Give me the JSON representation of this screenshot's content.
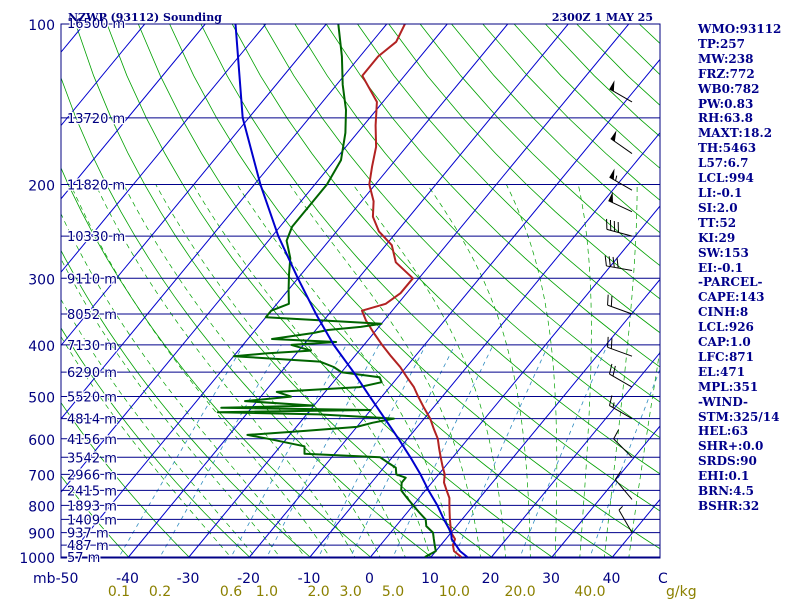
{
  "chart_data": {
    "type": "line",
    "title": "NZWP (93112) Sounding",
    "time": "2300Z  1 MAY 25",
    "ylabel": "mb",
    "pressure_levels": [
      100,
      200,
      300,
      400,
      500,
      600,
      700,
      800,
      900,
      1000
    ],
    "pressure_labels": [
      "100",
      "200",
      "300",
      "400",
      "500",
      "600",
      "700",
      "800",
      "900",
      "1000"
    ],
    "ylim": [
      1000,
      100
    ],
    "temperature_axis": {
      "ticks": [
        -50,
        -40,
        -30,
        -20,
        -10,
        0,
        10,
        20,
        30,
        40
      ],
      "labels": [
        "-50",
        "-40",
        "-30",
        "-20",
        "-10",
        "0",
        "10",
        "20",
        "30",
        "40"
      ],
      "unit": "C"
    },
    "mixing_ratio_axis": {
      "ticks": [
        0.1,
        0.2,
        0.6,
        1.0,
        2.0,
        3.0,
        5.0,
        10.0,
        20.0,
        40.0
      ],
      "labels": [
        "0.1",
        "0.2",
        "0.6",
        "1.0",
        "2.0",
        "3.0",
        "5.0",
        "10.0",
        "20.0",
        "40.0"
      ],
      "unit": "g/kg"
    },
    "height_labels": [
      {
        "p": 100,
        "text": "16500 m"
      },
      {
        "p": 150,
        "text": "13720 m"
      },
      {
        "p": 200,
        "text": "11820 m"
      },
      {
        "p": 250,
        "text": "10330 m"
      },
      {
        "p": 300,
        "text": "9110 m"
      },
      {
        "p": 350,
        "text": "8052 m"
      },
      {
        "p": 400,
        "text": "7130 m"
      },
      {
        "p": 450,
        "text": "6290 m"
      },
      {
        "p": 500,
        "text": "5520 m"
      },
      {
        "p": 550,
        "text": "4814 m"
      },
      {
        "p": 600,
        "text": "4156 m"
      },
      {
        "p": 650,
        "text": "3542 m"
      },
      {
        "p": 700,
        "text": "2966 m"
      },
      {
        "p": 750,
        "text": "2415 m"
      },
      {
        "p": 800,
        "text": "1893 m"
      },
      {
        "p": 850,
        "text": "1409 m"
      },
      {
        "p": 900,
        "text": "937 m"
      },
      {
        "p": 950,
        "text": "487 m"
      },
      {
        "p": 1000,
        "text": "57 m"
      }
    ],
    "series": [
      {
        "key": "temperature",
        "color": "#B22222",
        "points": [
          [
            1000,
            15
          ],
          [
            975,
            13
          ],
          [
            950,
            12
          ],
          [
            925,
            11.5
          ],
          [
            900,
            10
          ],
          [
            875,
            9
          ],
          [
            850,
            8
          ],
          [
            825,
            7
          ],
          [
            800,
            6
          ],
          [
            775,
            5
          ],
          [
            750,
            3.5
          ],
          [
            725,
            2
          ],
          [
            700,
            1
          ],
          [
            675,
            -0.5
          ],
          [
            650,
            -2
          ],
          [
            625,
            -3.5
          ],
          [
            600,
            -5
          ],
          [
            575,
            -7
          ],
          [
            550,
            -9
          ],
          [
            525,
            -11.5
          ],
          [
            500,
            -14
          ],
          [
            480,
            -16
          ],
          [
            460,
            -18.5
          ],
          [
            440,
            -21
          ],
          [
            420,
            -24
          ],
          [
            400,
            -27
          ],
          [
            380,
            -30
          ],
          [
            360,
            -33
          ],
          [
            345,
            -35
          ],
          [
            335,
            -32
          ],
          [
            320,
            -31
          ],
          [
            300,
            -31
          ],
          [
            280,
            -36
          ],
          [
            260,
            -39
          ],
          [
            245,
            -43
          ],
          [
            230,
            -46
          ],
          [
            215,
            -48
          ],
          [
            200,
            -51
          ],
          [
            185,
            -53
          ],
          [
            170,
            -55
          ],
          [
            155,
            -58
          ],
          [
            140,
            -61
          ],
          [
            125,
            -67
          ],
          [
            115,
            -67
          ],
          [
            108,
            -66
          ],
          [
            100,
            -67
          ]
        ]
      },
      {
        "key": "dewpoint",
        "color": "#006400",
        "points": [
          [
            1000,
            9
          ],
          [
            975,
            10
          ],
          [
            950,
            9
          ],
          [
            925,
            8
          ],
          [
            900,
            7
          ],
          [
            875,
            5
          ],
          [
            850,
            4
          ],
          [
            825,
            2
          ],
          [
            800,
            0
          ],
          [
            775,
            -2
          ],
          [
            750,
            -4
          ],
          [
            725,
            -5
          ],
          [
            710,
            -5
          ],
          [
            700,
            -7
          ],
          [
            680,
            -8
          ],
          [
            665,
            -10
          ],
          [
            650,
            -12
          ],
          [
            640,
            -25
          ],
          [
            620,
            -26
          ],
          [
            600,
            -33
          ],
          [
            590,
            -37
          ],
          [
            580,
            -28
          ],
          [
            570,
            -20
          ],
          [
            560,
            -18
          ],
          [
            550,
            -15
          ],
          [
            540,
            -28
          ],
          [
            535,
            -45
          ],
          [
            530,
            -20
          ],
          [
            525,
            -45
          ],
          [
            520,
            -30
          ],
          [
            510,
            -42
          ],
          [
            500,
            -35
          ],
          [
            490,
            -38
          ],
          [
            480,
            -25
          ],
          [
            470,
            -22
          ],
          [
            460,
            -23
          ],
          [
            450,
            -30
          ],
          [
            440,
            -32
          ],
          [
            430,
            -35
          ],
          [
            420,
            -50
          ],
          [
            415,
            -45
          ],
          [
            410,
            -38
          ],
          [
            400,
            -42
          ],
          [
            395,
            -35
          ],
          [
            390,
            -46
          ],
          [
            380,
            -40
          ],
          [
            375,
            -38
          ],
          [
            370,
            -33
          ],
          [
            365,
            -30
          ],
          [
            360,
            -40
          ],
          [
            355,
            -50
          ],
          [
            345,
            -50
          ],
          [
            335,
            -48
          ],
          [
            315,
            -50
          ],
          [
            295,
            -52
          ],
          [
            275,
            -54
          ],
          [
            255,
            -57
          ],
          [
            240,
            -58
          ],
          [
            220,
            -58
          ],
          [
            200,
            -58
          ],
          [
            180,
            -59
          ],
          [
            160,
            -62
          ],
          [
            145,
            -65
          ],
          [
            130,
            -69
          ],
          [
            115,
            -73
          ],
          [
            100,
            -78
          ]
        ]
      },
      {
        "key": "parcel",
        "color": "#0000CD",
        "points": [
          [
            1000,
            16
          ],
          [
            975,
            14
          ],
          [
            950,
            12.5
          ],
          [
            926,
            11
          ],
          [
            900,
            10
          ],
          [
            850,
            7
          ],
          [
            800,
            4
          ],
          [
            750,
            0.5
          ],
          [
            700,
            -3
          ],
          [
            650,
            -7
          ],
          [
            600,
            -11.5
          ],
          [
            550,
            -16.5
          ],
          [
            500,
            -22
          ],
          [
            450,
            -28
          ],
          [
            400,
            -35
          ],
          [
            351,
            -42
          ],
          [
            300,
            -50
          ],
          [
            250,
            -59
          ],
          [
            200,
            -69
          ],
          [
            150,
            -81
          ],
          [
            100,
            -95
          ]
        ]
      }
    ],
    "wind_barbs": [
      {
        "p": 140,
        "dir": 300,
        "spd": 50
      },
      {
        "p": 175,
        "dir": 305,
        "spd": 50
      },
      {
        "p": 205,
        "dir": 300,
        "spd": 55
      },
      {
        "p": 225,
        "dir": 295,
        "spd": 50
      },
      {
        "p": 250,
        "dir": 285,
        "spd": 40
      },
      {
        "p": 290,
        "dir": 280,
        "spd": 40
      },
      {
        "p": 350,
        "dir": 290,
        "spd": 20
      },
      {
        "p": 420,
        "dir": 290,
        "spd": 20
      },
      {
        "p": 480,
        "dir": 300,
        "spd": 20
      },
      {
        "p": 550,
        "dir": 300,
        "spd": 15
      },
      {
        "p": 650,
        "dir": 315,
        "spd": 10
      },
      {
        "p": 780,
        "dir": 320,
        "spd": 10
      },
      {
        "p": 900,
        "dir": 330,
        "spd": 5
      }
    ],
    "grid": true
  },
  "stats": [
    "WMO:93112",
    "TP:257",
    "MW:238",
    "FRZ:772",
    "WB0:782",
    "PW:0.83",
    "RH:63.8",
    "MAXT:18.2",
    "TH:5463",
    "L57:6.7",
    "LCL:994",
    "LI:-0.1",
    "SI:2.0",
    "TT:52",
    "KI:29",
    "SW:153",
    "EI:-0.1",
    "-PARCEL-",
    "CAPE:143",
    "CINH:8",
    "LCL:926",
    "CAP:1.0",
    "LFC:871",
    "EL:471",
    "MPL:351",
    "-WIND-",
    "STM:325/14",
    "HEL:63",
    "SHR+:0.0",
    "SRDS:90",
    "EHI:0.1",
    "BRN:4.5",
    "BSHR:32"
  ],
  "colors": {
    "frame": "#000080",
    "isobar": "#00008B",
    "isotherm": "#0000CD",
    "dry_adiabat": "#00A000",
    "moist_adiabat": "#00A000",
    "mixing_ratio": "#2E8BC0",
    "temperature": "#B22222",
    "dewpoint": "#006400",
    "parcel": "#0000CD",
    "axis_text": "#000080",
    "mixing_text": "#8B8000",
    "wind_barb": "#000000"
  }
}
